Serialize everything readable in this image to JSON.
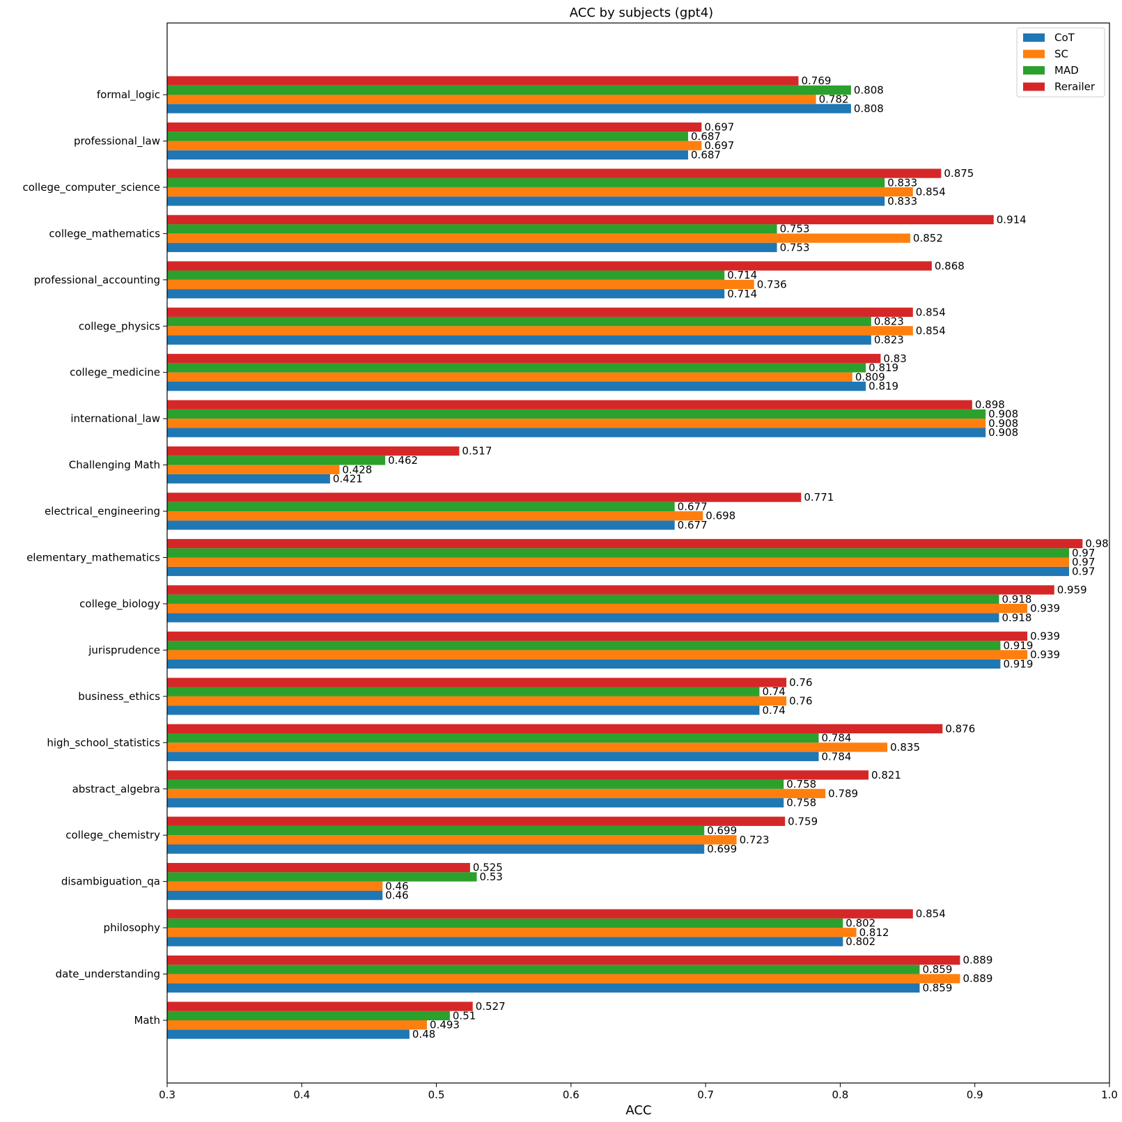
{
  "chart_data": {
    "type": "bar",
    "orientation": "horizontal",
    "title": "ACC by subjects (gpt4)",
    "xlabel": "ACC",
    "ylabel": "",
    "xlim": [
      0.3,
      1.0
    ],
    "xticks": [
      "0.3",
      "0.4",
      "0.5",
      "0.6",
      "0.7",
      "0.8",
      "0.9",
      "1.0"
    ],
    "grid": false,
    "legend_position": "top-right",
    "categories": [
      "Math",
      "date_understanding",
      "philosophy",
      "disambiguation_qa",
      "college_chemistry",
      "abstract_algebra",
      "high_school_statistics",
      "business_ethics",
      "jurisprudence",
      "college_biology",
      "elementary_mathematics",
      "electrical_engineering",
      "Challenging Math",
      "international_law",
      "college_medicine",
      "college_physics",
      "professional_accounting",
      "college_mathematics",
      "college_computer_science",
      "professional_law",
      "formal_logic"
    ],
    "series": [
      {
        "name": "CoT",
        "color": "#1f77b4",
        "values": [
          0.48,
          0.859,
          0.802,
          0.46,
          0.699,
          0.758,
          0.784,
          0.74,
          0.919,
          0.918,
          0.97,
          0.677,
          0.421,
          0.908,
          0.819,
          0.823,
          0.714,
          0.753,
          0.833,
          0.687,
          0.808
        ],
        "labels": [
          "0.48",
          "0.859",
          "0.802",
          "0.46",
          "0.699",
          "0.758",
          "0.784",
          "0.74",
          "0.919",
          "0.918",
          "0.97",
          "0.677",
          "0.421",
          "0.908",
          "0.819",
          "0.823",
          "0.714",
          "0.753",
          "0.833",
          "0.687",
          "0.808"
        ]
      },
      {
        "name": "SC",
        "color": "#ff7f0e",
        "values": [
          0.493,
          0.889,
          0.812,
          0.46,
          0.723,
          0.789,
          0.835,
          0.76,
          0.939,
          0.939,
          0.97,
          0.698,
          0.428,
          0.908,
          0.809,
          0.854,
          0.736,
          0.852,
          0.854,
          0.697,
          0.782
        ],
        "labels": [
          "0.493",
          "0.889",
          "0.812",
          "0.46",
          "0.723",
          "0.789",
          "0.835",
          "0.76",
          "0.939",
          "0.939",
          "0.97",
          "0.698",
          "0.428",
          "0.908",
          "0.809",
          "0.854",
          "0.736",
          "0.852",
          "0.854",
          "0.697",
          "0.782"
        ]
      },
      {
        "name": "MAD",
        "color": "#2ca02c",
        "values": [
          0.51,
          0.859,
          0.802,
          0.53,
          0.699,
          0.758,
          0.784,
          0.74,
          0.919,
          0.918,
          0.97,
          0.677,
          0.462,
          0.908,
          0.819,
          0.823,
          0.714,
          0.753,
          0.833,
          0.687,
          0.808
        ],
        "labels": [
          "0.51",
          "0.859",
          "0.802",
          "0.53",
          "0.699",
          "0.758",
          "0.784",
          "0.74",
          "0.919",
          "0.918",
          "0.97",
          "0.677",
          "0.462",
          "0.908",
          "0.819",
          "0.823",
          "0.714",
          "0.753",
          "0.833",
          "0.687",
          "0.808"
        ]
      },
      {
        "name": "Rerailer",
        "color": "#d62728",
        "values": [
          0.527,
          0.889,
          0.854,
          0.525,
          0.759,
          0.821,
          0.876,
          0.76,
          0.939,
          0.959,
          0.98,
          0.771,
          0.517,
          0.898,
          0.83,
          0.854,
          0.868,
          0.914,
          0.875,
          0.697,
          0.769
        ],
        "labels": [
          "0.527",
          "0.889",
          "0.854",
          "0.525",
          "0.759",
          "0.821",
          "0.876",
          "0.76",
          "0.939",
          "0.959",
          "0.98",
          "0.771",
          "0.517",
          "0.898",
          "0.83",
          "0.854",
          "0.868",
          "0.914",
          "0.875",
          "0.697",
          "0.769"
        ]
      }
    ]
  }
}
